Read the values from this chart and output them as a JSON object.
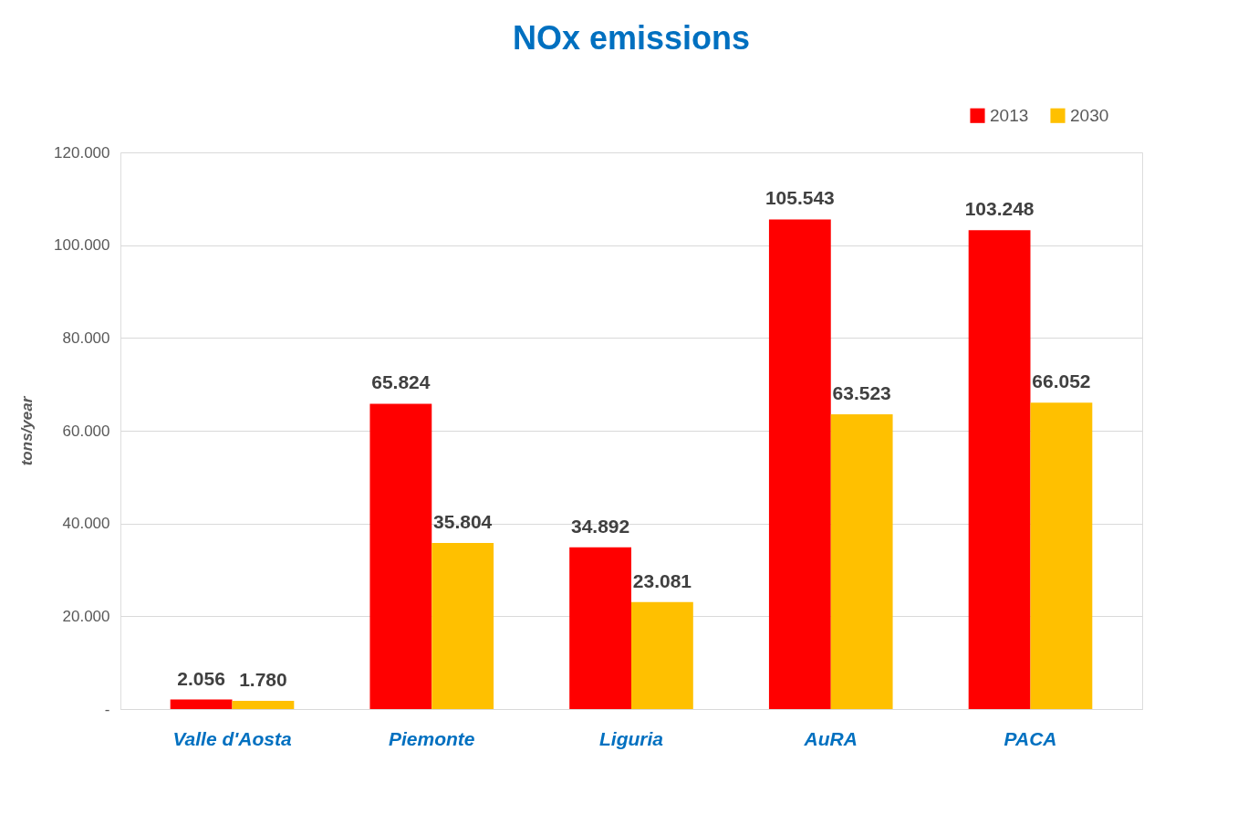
{
  "chart_data": {
    "type": "bar",
    "title": "NOx emissions",
    "ylabel": "tons/year",
    "categories": [
      "Valle d'Aosta",
      "Piemonte",
      "Liguria",
      "AuRA",
      "PACA"
    ],
    "series": [
      {
        "name": "2013",
        "color": "#ff0000",
        "values": [
          2056,
          65824,
          34892,
          105543,
          103248
        ],
        "value_labels": [
          "2.056",
          "65.824",
          "34.892",
          "105.543",
          "103.248"
        ]
      },
      {
        "name": "2030",
        "color": "#ffc000",
        "values": [
          1780,
          35804,
          23081,
          63523,
          66052
        ],
        "value_labels": [
          "1.780",
          "35.804",
          "23.081",
          "63.523",
          "66.052"
        ]
      }
    ],
    "ylim": [
      0,
      120000
    ],
    "yticks": [
      {
        "value": 0,
        "label": "-"
      },
      {
        "value": 20000,
        "label": "20.000"
      },
      {
        "value": 40000,
        "label": "40.000"
      },
      {
        "value": 60000,
        "label": "60.000"
      },
      {
        "value": 80000,
        "label": "80.000"
      },
      {
        "value": 100000,
        "label": "100.000"
      },
      {
        "value": 120000,
        "label": "120.000"
      }
    ],
    "grid": "y",
    "legend": "top right"
  }
}
